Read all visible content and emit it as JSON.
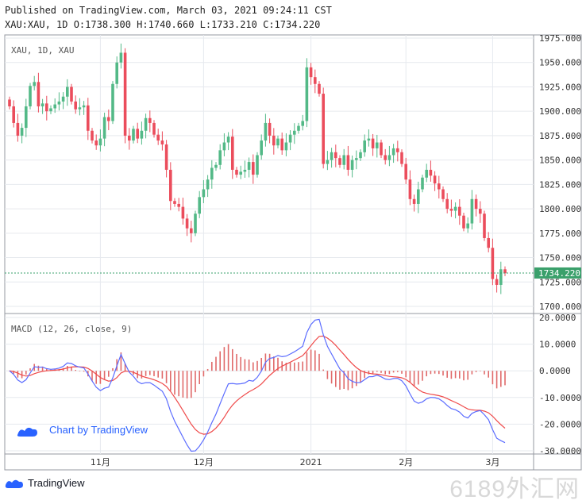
{
  "header": {
    "published": "Published on TradingView.com, March 03, 2021 09:24:11 CST",
    "ohlc": "XAU:XAU, 1D O:1738.300 H:1740.660 L:1733.210 C:1734.220"
  },
  "watermark": "6189外汇网",
  "footer_brand": "TradingView",
  "colors": {
    "up": "#53b987",
    "down": "#eb4d5c",
    "grid": "#e6e9ee",
    "macd": "#5b6cff",
    "signal": "#ef4a4a",
    "hist": "#e06a6a",
    "last": "#3aa06b"
  },
  "chart_data": [
    {
      "type": "candlestick",
      "legend": "XAU, 1D, XAU",
      "last_price_label": "1734.220",
      "last_price": 1734.22,
      "ylim": [
        1690,
        1980
      ],
      "y_ticks": [
        "1975.000",
        "1950.000",
        "1925.000",
        "1900.000",
        "1875.000",
        "1850.000",
        "1825.000",
        "1800.000",
        "1775.000",
        "1750.000",
        "1725.000",
        "1700.000"
      ],
      "x_ticks": [
        {
          "label": "11月",
          "i": 22
        },
        {
          "label": "12月",
          "i": 47
        },
        {
          "label": "2021",
          "i": 73
        },
        {
          "label": "2月",
          "i": 96
        },
        {
          "label": "3月",
          "i": 117
        }
      ],
      "close": [
        1905,
        1888,
        1875,
        1883,
        1905,
        1926,
        1930,
        1905,
        1908,
        1900,
        1903,
        1907,
        1910,
        1915,
        1925,
        1910,
        1902,
        1904,
        1906,
        1880,
        1870,
        1865,
        1872,
        1894,
        1890,
        1928,
        1950,
        1960,
        1875,
        1870,
        1882,
        1872,
        1880,
        1893,
        1888,
        1876,
        1870,
        1866,
        1840,
        1808,
        1805,
        1802,
        1790,
        1780,
        1775,
        1795,
        1812,
        1820,
        1830,
        1842,
        1845,
        1860,
        1868,
        1874,
        1840,
        1835,
        1838,
        1840,
        1848,
        1835,
        1855,
        1870,
        1888,
        1875,
        1865,
        1872,
        1860,
        1868,
        1876,
        1880,
        1885,
        1890,
        1945,
        1935,
        1928,
        1918,
        1846,
        1850,
        1858,
        1852,
        1845,
        1855,
        1840,
        1850,
        1852,
        1858,
        1870,
        1872,
        1862,
        1868,
        1855,
        1850,
        1855,
        1862,
        1858,
        1846,
        1830,
        1810,
        1805,
        1820,
        1832,
        1840,
        1834,
        1826,
        1820,
        1810,
        1800,
        1798,
        1802,
        1793,
        1780,
        1785,
        1810,
        1800,
        1795,
        1770,
        1760,
        1728,
        1722,
        1738,
        1734
      ],
      "macd": {
        "ylim": [
          -30,
          20
        ],
        "y_ticks": [
          "20.0000",
          "10.0000",
          "0.0000",
          "-10.0000",
          "-20.0000",
          "-30.0000"
        ],
        "legend": "MACD (12, 26, close, 9)"
      }
    }
  ]
}
